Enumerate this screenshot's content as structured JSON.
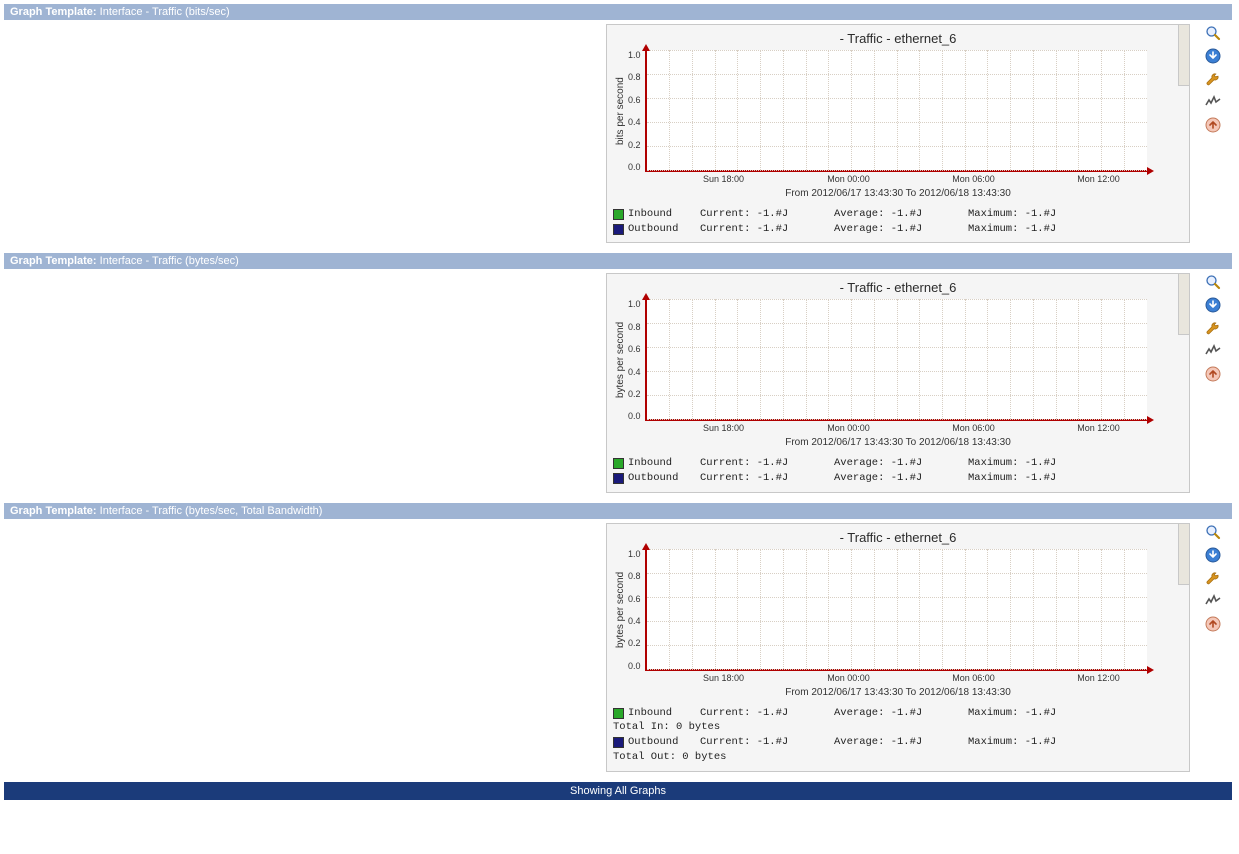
{
  "footer": "Showing All Graphs",
  "section_label": "Graph Template:",
  "colors": {
    "header_bg": "#9fb4d3",
    "header_text": "#ffffff",
    "footer_bg": "#1b3b7a",
    "card_bg": "#f5f5f5",
    "card_border": "#c8c8c8",
    "plot_bg": "#ffffff",
    "axis": "#b00000",
    "grid": "#d8cfc4",
    "inbound_swatch": "#2aa82a",
    "outbound_swatch": "#1a1a7a"
  },
  "chart_common": {
    "title": " - Traffic - ethernet_6",
    "yticks": [
      "1.0",
      "0.8",
      "0.6",
      "0.4",
      "0.2",
      "0.0"
    ],
    "xticks": [
      "Sun 18:00",
      "Mon 00:00",
      "Mon 06:00",
      "Mon 12:00"
    ],
    "timerange": "From 2012/06/17 13:43:30 To 2012/06/18 13:43:30",
    "ylim": [
      0.0,
      1.0
    ],
    "grid_rows": 5,
    "grid_cols_minor": 22
  },
  "sections": [
    {
      "key": "bits",
      "header": "Interface - Traffic (bits/sec)",
      "y_label": "bits per second",
      "legend": [
        {
          "swatch": "inbound_swatch",
          "label": "Inbound",
          "current": "Current: -1.#J",
          "avg": "Average: -1.#J",
          "max": "Maximum: -1.#J"
        },
        {
          "swatch": "outbound_swatch",
          "label": "Outbound",
          "current": "Current: -1.#J",
          "avg": "Average: -1.#J",
          "max": "Maximum: -1.#J"
        }
      ],
      "extra_lines": []
    },
    {
      "key": "bytes",
      "header": "Interface - Traffic (bytes/sec)",
      "y_label": "bytes per second",
      "legend": [
        {
          "swatch": "inbound_swatch",
          "label": "Inbound",
          "current": "Current: -1.#J",
          "avg": "Average: -1.#J",
          "max": "Maximum: -1.#J"
        },
        {
          "swatch": "outbound_swatch",
          "label": "Outbound",
          "current": "Current: -1.#J",
          "avg": "Average: -1.#J",
          "max": "Maximum: -1.#J"
        }
      ],
      "extra_lines": []
    },
    {
      "key": "total",
      "header": "Interface - Traffic (bytes/sec, Total Bandwidth)",
      "y_label": "bytes per second",
      "legend": [
        {
          "swatch": "inbound_swatch",
          "label": "Inbound",
          "current": "Current: -1.#J",
          "avg": "Average: -1.#J",
          "max": "Maximum: -1.#J"
        },
        {
          "swatch": "outbound_swatch",
          "label": "Outbound",
          "current": "Current: -1.#J",
          "avg": "Average: -1.#J",
          "max": "Maximum: -1.#J"
        }
      ],
      "extra_lines": [
        "Total In:  0 bytes",
        "Total Out: 0 bytes"
      ]
    }
  ],
  "icons": [
    {
      "name": "zoom-icon",
      "title": "Zoom"
    },
    {
      "name": "csv-icon",
      "title": "CSV Export"
    },
    {
      "name": "wrench-icon",
      "title": "Edit"
    },
    {
      "name": "realtime-icon",
      "title": "Realtime"
    },
    {
      "name": "top-icon",
      "title": "Page Top"
    }
  ]
}
